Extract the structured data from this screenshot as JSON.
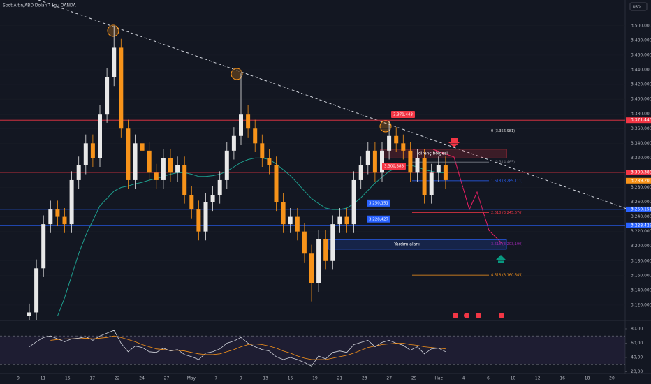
{
  "header": {
    "title": "Spot Altın/ABD Doları · 1g · OANDA",
    "currency": "USD"
  },
  "chart_data": {
    "type": "candlestick",
    "open": [
      3105,
      3110,
      3170,
      3230,
      3250,
      3240,
      3230,
      3290,
      3310,
      3340,
      3320,
      3380,
      3430,
      3470,
      3360,
      3290,
      3340,
      3330,
      3300,
      3290,
      3320,
      3300,
      3310,
      3270,
      3250,
      3220,
      3260,
      3270,
      3290,
      3330,
      3350,
      3380,
      3360,
      3340,
      3320,
      3310,
      3260,
      3230,
      3240,
      3220,
      3190,
      3150,
      3210,
      3180,
      3230,
      3240,
      3230,
      3290,
      3310,
      3330,
      3300,
      3330,
      3350,
      3340,
      3330,
      3300,
      3320,
      3270,
      3300,
      3310
    ],
    "high": [
      3122,
      3182,
      3242,
      3262,
      3262,
      3252,
      3302,
      3322,
      3352,
      3352,
      3392,
      3442,
      3500,
      3482,
      3372,
      3352,
      3352,
      3342,
      3312,
      3332,
      3332,
      3322,
      3322,
      3282,
      3262,
      3272,
      3282,
      3302,
      3342,
      3362,
      3435,
      3392,
      3372,
      3352,
      3332,
      3322,
      3272,
      3252,
      3252,
      3232,
      3202,
      3222,
      3222,
      3242,
      3252,
      3252,
      3302,
      3322,
      3342,
      3342,
      3342,
      3370,
      3362,
      3352,
      3342,
      3332,
      3332,
      3312,
      3322,
      3322
    ],
    "low": [
      3100,
      3098,
      3158,
      3218,
      3228,
      3218,
      3218,
      3278,
      3298,
      3308,
      3308,
      3368,
      3418,
      3348,
      3278,
      3278,
      3318,
      3288,
      3278,
      3278,
      3288,
      3288,
      3258,
      3238,
      3208,
      3208,
      3248,
      3258,
      3278,
      3318,
      3338,
      3348,
      3328,
      3308,
      3298,
      3248,
      3218,
      3218,
      3208,
      3178,
      3125,
      3138,
      3168,
      3168,
      3218,
      3218,
      3218,
      3278,
      3298,
      3288,
      3288,
      3318,
      3328,
      3318,
      3288,
      3288,
      3258,
      3258,
      3288,
      3278
    ],
    "close": [
      3110,
      3170,
      3230,
      3250,
      3240,
      3230,
      3290,
      3310,
      3340,
      3320,
      3380,
      3430,
      3470,
      3360,
      3290,
      3340,
      3330,
      3300,
      3290,
      3320,
      3300,
      3310,
      3270,
      3250,
      3220,
      3260,
      3270,
      3290,
      3330,
      3350,
      3380,
      3360,
      3340,
      3320,
      3310,
      3260,
      3230,
      3240,
      3220,
      3190,
      3150,
      3210,
      3180,
      3230,
      3240,
      3230,
      3290,
      3310,
      3330,
      3300,
      3330,
      3350,
      3340,
      3330,
      3300,
      3320,
      3270,
      3300,
      3310,
      3290
    ],
    "up_color": "#e8e8e8",
    "down_color": "#f7931a",
    "ma": {
      "color": "#1e9c8c",
      "values": [
        null,
        null,
        null,
        null,
        3105,
        3130,
        3160,
        3190,
        3215,
        3235,
        3255,
        3265,
        3275,
        3280,
        3282,
        3285,
        3287,
        3290,
        3292,
        3295,
        3298,
        3300,
        3300,
        3298,
        3295,
        3295,
        3296,
        3298,
        3302,
        3308,
        3314,
        3318,
        3320,
        3320,
        3318,
        3312,
        3304,
        3296,
        3286,
        3275,
        3265,
        3258,
        3252,
        3250,
        3250,
        3252,
        3258,
        3266,
        3276,
        3286,
        3294,
        3302,
        3306,
        3310,
        3310,
        3308,
        3304,
        3302,
        3300,
        3300
      ]
    },
    "ylim": [
      3100,
      3535
    ],
    "yticks": [
      {
        "value": 3120,
        "label": "3.120,000"
      },
      {
        "value": 3140,
        "label": "3.140,000"
      },
      {
        "value": 3160,
        "label": "3.160,000"
      },
      {
        "value": 3180,
        "label": "3.180,000"
      },
      {
        "value": 3200,
        "label": "3.200,000"
      },
      {
        "value": 3220,
        "label": "3.220,000"
      },
      {
        "value": 3240,
        "label": "3.240,000"
      },
      {
        "value": 3260,
        "label": "3.260,000"
      },
      {
        "value": 3280,
        "label": "3.280,000"
      },
      {
        "value": 3320,
        "label": "3.320,000"
      },
      {
        "value": 3340,
        "label": "3.340,000"
      },
      {
        "value": 3360,
        "label": "3.360,000"
      },
      {
        "value": 3380,
        "label": "3.380,000"
      },
      {
        "value": 3400,
        "label": "3.400,000"
      },
      {
        "value": 3420,
        "label": "3.420,000"
      },
      {
        "value": 3440,
        "label": "3.440,000"
      },
      {
        "value": 3460,
        "label": "3.460,000"
      },
      {
        "value": 3480,
        "label": "3.480,000"
      },
      {
        "value": 3500,
        "label": "3.500,000"
      }
    ],
    "time_labels": [
      "9",
      "11",
      "15",
      "17",
      "22",
      "24",
      "27",
      "May",
      "7",
      "9",
      "13",
      "15",
      "19",
      "21",
      "23",
      "27",
      "29",
      "Haz",
      "4",
      "6",
      "10",
      "12",
      "16",
      "18",
      "20"
    ],
    "levels": [
      {
        "value": 3371.443,
        "label": "3.371,443",
        "color": "#f23645"
      },
      {
        "value": 3300.388,
        "label": "3.300,388",
        "color": "#f23645"
      },
      {
        "value": 3250.151,
        "label": "3.250,151",
        "color": "#2962ff"
      },
      {
        "value": 3228.427,
        "label": "3.228,427",
        "color": "#2962ff"
      }
    ],
    "last_price": {
      "value": 3289.2,
      "label": "3.289,200",
      "color": "#f7931a"
    },
    "fib": [
      {
        "value": 3356.981,
        "label": "0 (3.356,981)",
        "color": "#e0e0e0"
      },
      {
        "value": 3314.465,
        "label": "1 (3.314,465)",
        "color": "#787b86"
      },
      {
        "value": 3289.111,
        "label": "1.618 (3.289,111)",
        "color": "#2962ff"
      },
      {
        "value": 3245.676,
        "label": "2.618 (3.245,676)",
        "color": "#f23645"
      },
      {
        "value": 3203.19,
        "label": "3.618 (3.203,190)",
        "color": "#9c27b0"
      },
      {
        "value": 3160.645,
        "label": "4.618 (3.160,645)",
        "color": "#f7931a"
      }
    ],
    "zones": [
      {
        "label": "direnç bölgesi",
        "top": 3332,
        "bottom": 3320,
        "color": "#f23645"
      },
      {
        "label": "Yardım alanı",
        "top": 3209,
        "bottom": 3196,
        "color": "#2962ff"
      }
    ],
    "rsi": {
      "ylim": [
        18.5,
        90.7
      ],
      "yticks": [
        {
          "value": 20,
          "label": "20,00"
        },
        {
          "value": 40,
          "label": "40,00"
        },
        {
          "value": 60,
          "label": "60,00"
        },
        {
          "value": 80,
          "label": "80,00"
        }
      ],
      "band": [
        30,
        70
      ],
      "color": "#d1d4dc",
      "values": [
        55,
        62,
        68,
        70,
        66,
        62,
        66,
        67,
        69,
        64,
        70,
        74,
        78,
        60,
        48,
        56,
        54,
        48,
        47,
        53,
        49,
        51,
        44,
        41,
        37,
        46,
        48,
        52,
        60,
        63,
        68,
        60,
        55,
        51,
        49,
        41,
        37,
        40,
        37,
        33,
        28,
        42,
        38,
        47,
        49,
        47,
        58,
        61,
        64,
        55,
        61,
        64,
        60,
        57,
        50,
        55,
        45,
        52,
        53,
        48
      ],
      "ma": {
        "color": "#f7931a",
        "values": [
          null,
          null,
          null,
          64,
          65,
          66,
          66,
          66,
          67,
          66,
          67,
          68,
          70,
          68,
          65,
          62,
          58,
          55,
          52,
          51,
          50,
          50,
          49,
          47,
          45,
          44,
          44,
          45,
          48,
          51,
          55,
          58,
          59,
          58,
          56,
          53,
          49,
          46,
          42,
          39,
          37,
          37,
          37,
          39,
          41,
          43,
          46,
          50,
          54,
          56,
          58,
          59,
          60,
          60,
          58,
          57,
          55,
          54,
          53,
          52
        ]
      }
    }
  }
}
